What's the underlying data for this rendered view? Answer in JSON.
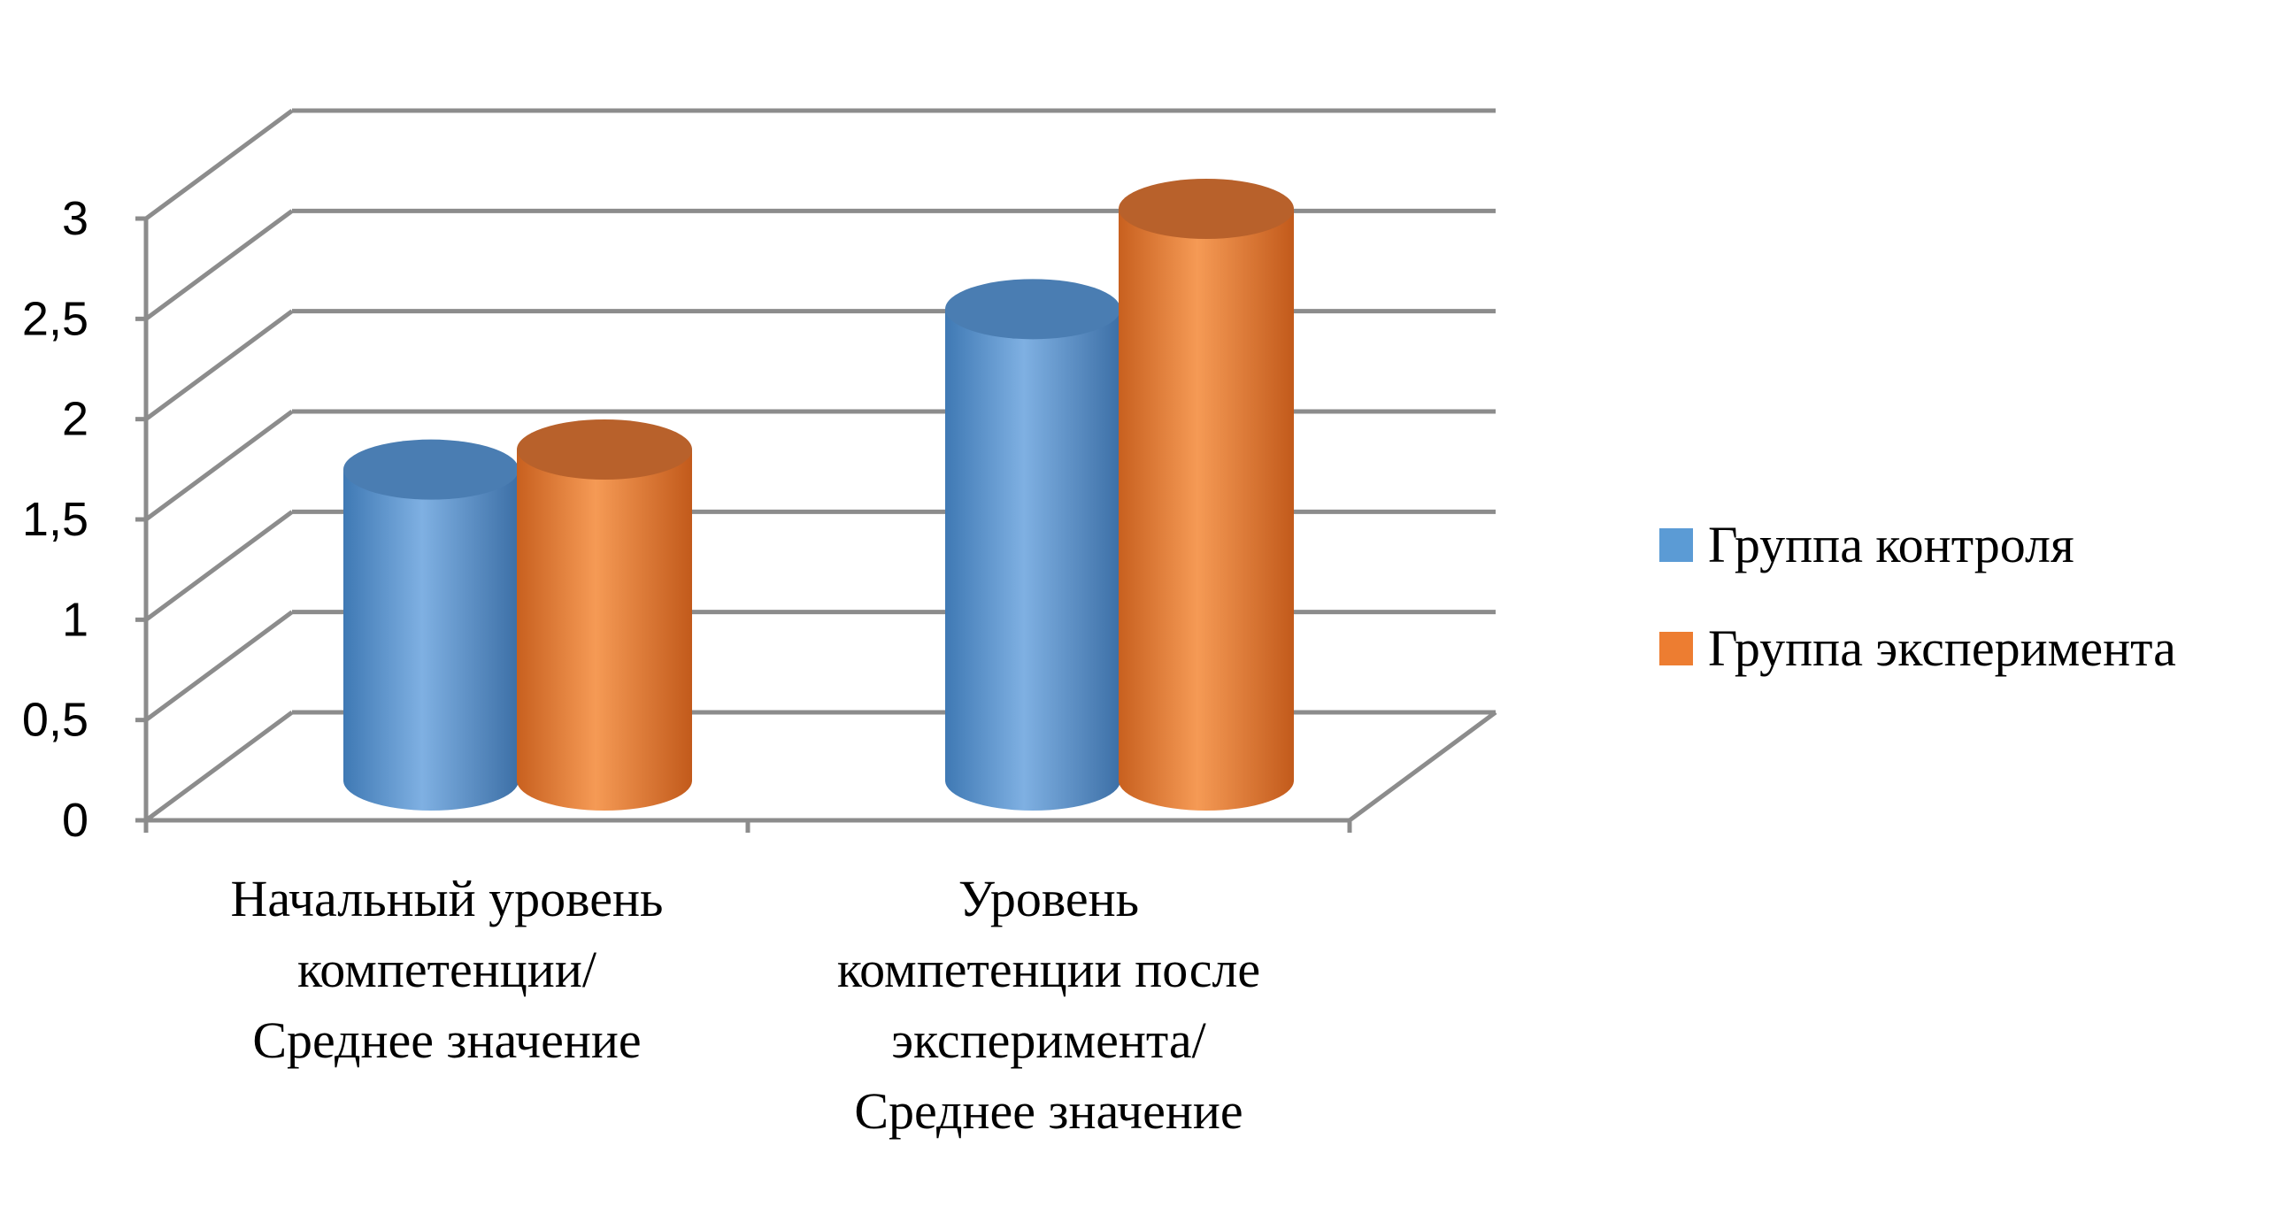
{
  "chart_data": {
    "type": "bar",
    "style": "3d-cylinder",
    "categories": [
      [
        "Начальный уровень",
        "компетенции/",
        "Среднее значение"
      ],
      [
        "Уровень",
        "компетенции после",
        "эксперимента/",
        "Среднее значение"
      ]
    ],
    "series": [
      {
        "name": "Группа контроля",
        "values": [
          1.55,
          2.35
        ],
        "color": "#5b9bd5"
      },
      {
        "name": "Группа эксперимента",
        "values": [
          1.65,
          2.85
        ],
        "color": "#ed7d31"
      }
    ],
    "ylim": [
      0,
      3
    ],
    "yticks": [
      "0",
      "0,5",
      "1",
      "1,5",
      "2",
      "2,5",
      "3"
    ],
    "title": "",
    "xlabel": "",
    "ylabel": "",
    "grid": true,
    "legend_position": "right"
  }
}
